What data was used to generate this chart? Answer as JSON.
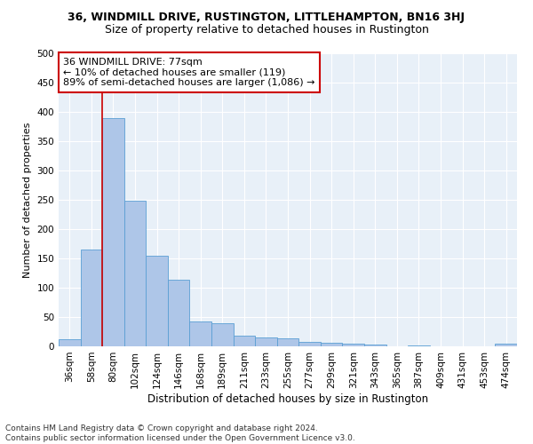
{
  "title1": "36, WINDMILL DRIVE, RUSTINGTON, LITTLEHAMPTON, BN16 3HJ",
  "title2": "Size of property relative to detached houses in Rustington",
  "xlabel": "Distribution of detached houses by size in Rustington",
  "ylabel": "Number of detached properties",
  "footer": "Contains HM Land Registry data © Crown copyright and database right 2024.\nContains public sector information licensed under the Open Government Licence v3.0.",
  "categories": [
    "36sqm",
    "58sqm",
    "80sqm",
    "102sqm",
    "124sqm",
    "146sqm",
    "168sqm",
    "189sqm",
    "211sqm",
    "233sqm",
    "255sqm",
    "277sqm",
    "299sqm",
    "321sqm",
    "343sqm",
    "365sqm",
    "387sqm",
    "409sqm",
    "431sqm",
    "453sqm",
    "474sqm"
  ],
  "values": [
    12,
    165,
    390,
    248,
    155,
    113,
    42,
    40,
    18,
    15,
    13,
    8,
    6,
    4,
    3,
    0,
    2,
    0,
    0,
    0,
    4
  ],
  "bar_color": "#aec6e8",
  "bar_edgecolor": "#5a9fd4",
  "annotation_text": "36 WINDMILL DRIVE: 77sqm\n← 10% of detached houses are smaller (119)\n89% of semi-detached houses are larger (1,086) →",
  "vline_x_index": 1.5,
  "vline_color": "#cc0000",
  "annotation_box_color": "#ffffff",
  "annotation_box_edgecolor": "#cc0000",
  "bg_color": "#e8f0f8",
  "ylim": [
    0,
    500
  ],
  "yticks": [
    0,
    50,
    100,
    150,
    200,
    250,
    300,
    350,
    400,
    450,
    500
  ],
  "title1_fontsize": 9,
  "title2_fontsize": 9,
  "xlabel_fontsize": 8.5,
  "ylabel_fontsize": 8,
  "tick_fontsize": 7.5,
  "annotation_fontsize": 8
}
